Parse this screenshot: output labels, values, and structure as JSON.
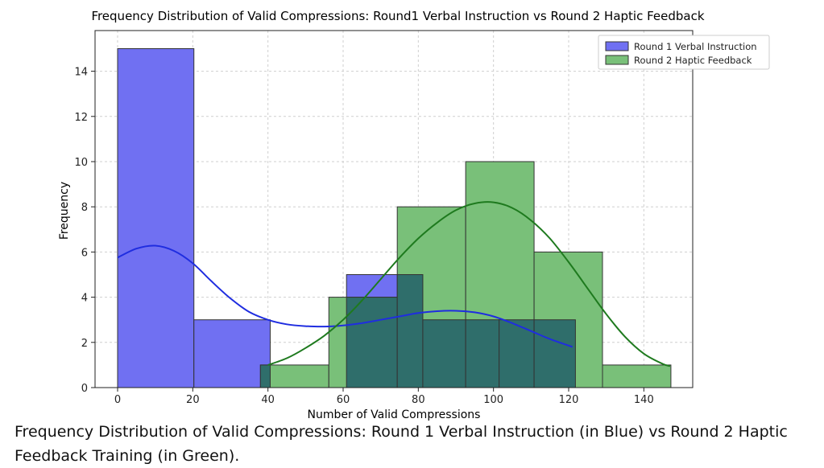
{
  "caption": "Frequency Distribution of Valid Compressions: Round 1 Verbal Instruction (in Blue) vs Round 2 Haptic Feedback Training (in Green).",
  "chart_data": {
    "type": "histogram",
    "title": "Frequency Distribution of Valid Compressions: Round1 Verbal Instruction vs Round 2 Haptic Feedback",
    "xlabel": "Number of Valid Compressions",
    "ylabel": "Frequency",
    "xlim": [
      -6,
      153
    ],
    "ylim": [
      0,
      15.8
    ],
    "xticks": [
      0,
      20,
      40,
      60,
      80,
      100,
      120,
      140
    ],
    "yticks": [
      0,
      2,
      4,
      6,
      8,
      10,
      12,
      14
    ],
    "grid": true,
    "legend_position": "top-right",
    "overlap_color": "#2f6e6b",
    "series": [
      {
        "name": "Round 1 Verbal Instruction",
        "color": "#7070f2",
        "line_color": "#1f2de0",
        "bins": [
          {
            "x0": 0,
            "x1": 20.3,
            "count": 15
          },
          {
            "x0": 20.3,
            "x1": 40.6,
            "count": 3
          },
          {
            "x0": 40.6,
            "x1": 60.9,
            "count": 0
          },
          {
            "x0": 60.9,
            "x1": 81.2,
            "count": 5
          },
          {
            "x0": 81.2,
            "x1": 101.5,
            "count": 3
          },
          {
            "x0": 101.5,
            "x1": 121.8,
            "count": 3
          }
        ],
        "kde": [
          [
            0,
            5.75
          ],
          [
            5,
            6.15
          ],
          [
            10,
            6.28
          ],
          [
            15,
            6.05
          ],
          [
            20,
            5.5
          ],
          [
            25,
            4.7
          ],
          [
            30,
            3.95
          ],
          [
            35,
            3.35
          ],
          [
            40,
            3.0
          ],
          [
            45,
            2.8
          ],
          [
            50,
            2.72
          ],
          [
            55,
            2.7
          ],
          [
            60,
            2.75
          ],
          [
            65,
            2.85
          ],
          [
            70,
            3.0
          ],
          [
            75,
            3.15
          ],
          [
            80,
            3.3
          ],
          [
            85,
            3.38
          ],
          [
            90,
            3.4
          ],
          [
            95,
            3.33
          ],
          [
            100,
            3.15
          ],
          [
            105,
            2.85
          ],
          [
            110,
            2.5
          ],
          [
            115,
            2.15
          ],
          [
            121,
            1.8
          ]
        ]
      },
      {
        "name": "Round 2 Haptic Feedback",
        "color": "#79c079",
        "line_color": "#1e7a1e",
        "bins": [
          {
            "x0": 38,
            "x1": 56.2,
            "count": 1
          },
          {
            "x0": 56.2,
            "x1": 74.4,
            "count": 4
          },
          {
            "x0": 74.4,
            "x1": 92.6,
            "count": 8
          },
          {
            "x0": 92.6,
            "x1": 110.8,
            "count": 10
          },
          {
            "x0": 110.8,
            "x1": 129,
            "count": 6
          },
          {
            "x0": 129,
            "x1": 147.2,
            "count": 1
          }
        ],
        "kde": [
          [
            40,
            1.0
          ],
          [
            45,
            1.3
          ],
          [
            50,
            1.75
          ],
          [
            55,
            2.3
          ],
          [
            60,
            3.0
          ],
          [
            65,
            3.85
          ],
          [
            70,
            4.8
          ],
          [
            75,
            5.75
          ],
          [
            80,
            6.6
          ],
          [
            85,
            7.3
          ],
          [
            90,
            7.85
          ],
          [
            95,
            8.15
          ],
          [
            100,
            8.2
          ],
          [
            105,
            7.95
          ],
          [
            110,
            7.4
          ],
          [
            115,
            6.6
          ],
          [
            120,
            5.55
          ],
          [
            125,
            4.4
          ],
          [
            130,
            3.25
          ],
          [
            135,
            2.25
          ],
          [
            140,
            1.5
          ],
          [
            145,
            1.05
          ],
          [
            147,
            0.95
          ]
        ]
      }
    ]
  }
}
